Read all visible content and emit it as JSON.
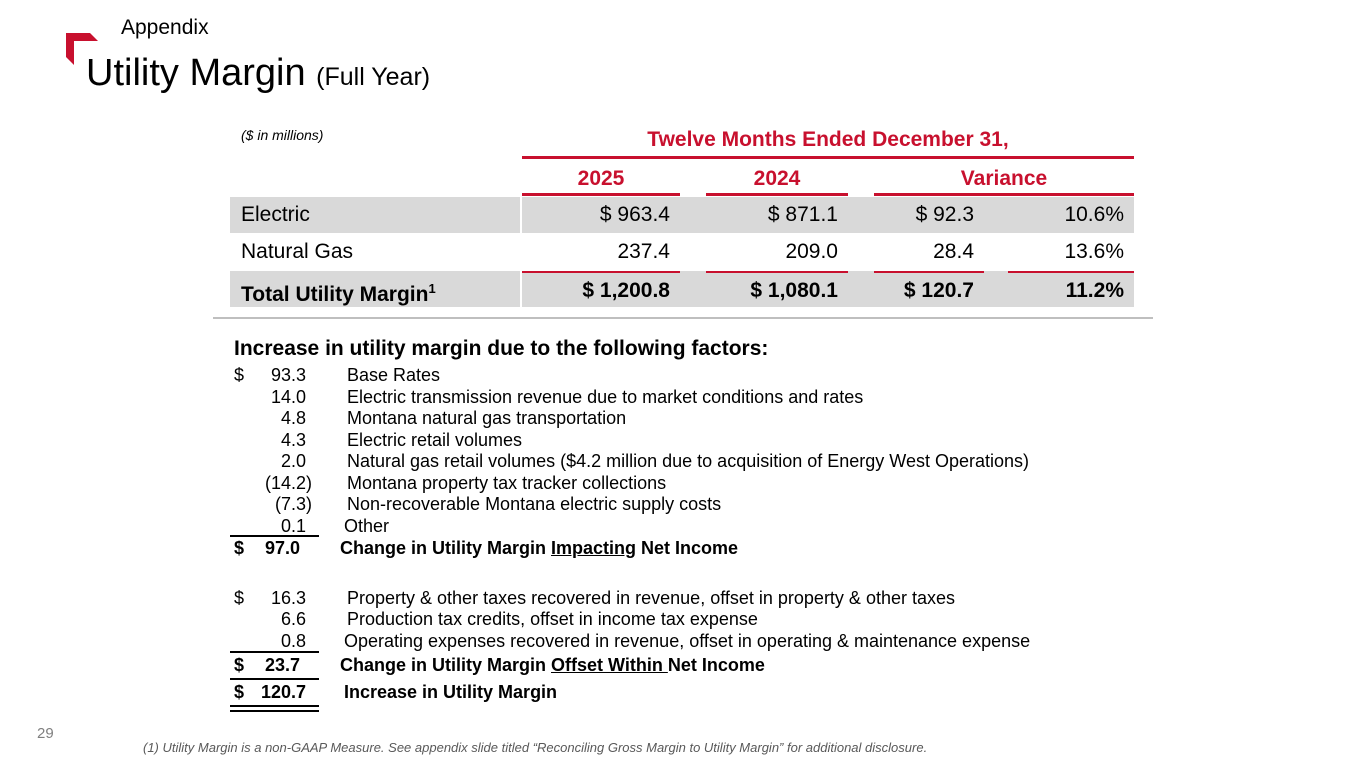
{
  "header": {
    "section": "Appendix",
    "title": "Utility Margin",
    "title_sub": "(Full Year)",
    "accent_color": "#c8102e"
  },
  "table": {
    "units_note": "($ in millions)",
    "period_header": "Twelve Months Ended December 31,",
    "columns": [
      "2025",
      "2024",
      "Variance"
    ],
    "rows": [
      {
        "label": "Electric",
        "y2025": "$ 963.4",
        "y2024": "$ 871.1",
        "var_amt": "$ 92.3",
        "var_pct": "10.6%"
      },
      {
        "label": "Natural Gas",
        "y2025": "237.4",
        "y2024": "209.0",
        "var_amt": "28.4",
        "var_pct": "13.6%"
      },
      {
        "label": "Total Utility Margin",
        "label_sup": "1",
        "y2025": "$ 1,200.8",
        "y2024": "$ 1,080.1",
        "var_amt": "$ 120.7",
        "var_pct": "11.2%"
      }
    ]
  },
  "factors": {
    "heading": "Increase in utility margin due to the following factors:",
    "impacting": [
      {
        "dollar": "$",
        "amount": "93.3",
        "desc": "Base Rates"
      },
      {
        "dollar": "",
        "amount": "14.0",
        "desc": "Electric transmission revenue due to market conditions and rates"
      },
      {
        "dollar": "",
        "amount": "4.8",
        "desc": "Montana natural gas transportation"
      },
      {
        "dollar": "",
        "amount": "4.3",
        "desc": "Electric retail volumes"
      },
      {
        "dollar": "",
        "amount": "2.0",
        "desc": "Natural gas retail volumes ($4.2 million due to acquisition of Energy West Operations)"
      },
      {
        "dollar": "",
        "amount": "(14.2)",
        "desc": "Montana property tax tracker collections"
      },
      {
        "dollar": "",
        "amount": "(7.3)",
        "desc": "Non-recoverable Montana electric supply costs"
      },
      {
        "dollar": "",
        "amount": "0.1",
        "desc": "Other"
      }
    ],
    "impacting_total": {
      "dollar": "$",
      "amount": "97.0",
      "pre": "Change in Utility Margin ",
      "emph": "Impacting",
      "post": " Net Income"
    },
    "offset": [
      {
        "dollar": "$",
        "amount": "16.3",
        "desc": "Property & other taxes recovered in revenue, offset in property & other taxes"
      },
      {
        "dollar": "",
        "amount": "6.6",
        "desc": "Production tax credits, offset in income tax expense"
      },
      {
        "dollar": "",
        "amount": "0.8",
        "desc": "Operating expenses recovered in revenue, offset in operating & maintenance expense"
      }
    ],
    "offset_total": {
      "dollar": "$",
      "amount": "23.7",
      "pre": "Change in Utility Margin ",
      "emph": "Offset Within ",
      "post": "Net Income"
    },
    "grand_total": {
      "dollar": "$",
      "amount": "120.7",
      "desc": "Increase in Utility Margin"
    }
  },
  "footer": {
    "page_number": "29",
    "footnote": "(1) Utility Margin is a non-GAAP Measure. See appendix slide titled “Reconciling Gross Margin to Utility Margin” for additional disclosure."
  }
}
